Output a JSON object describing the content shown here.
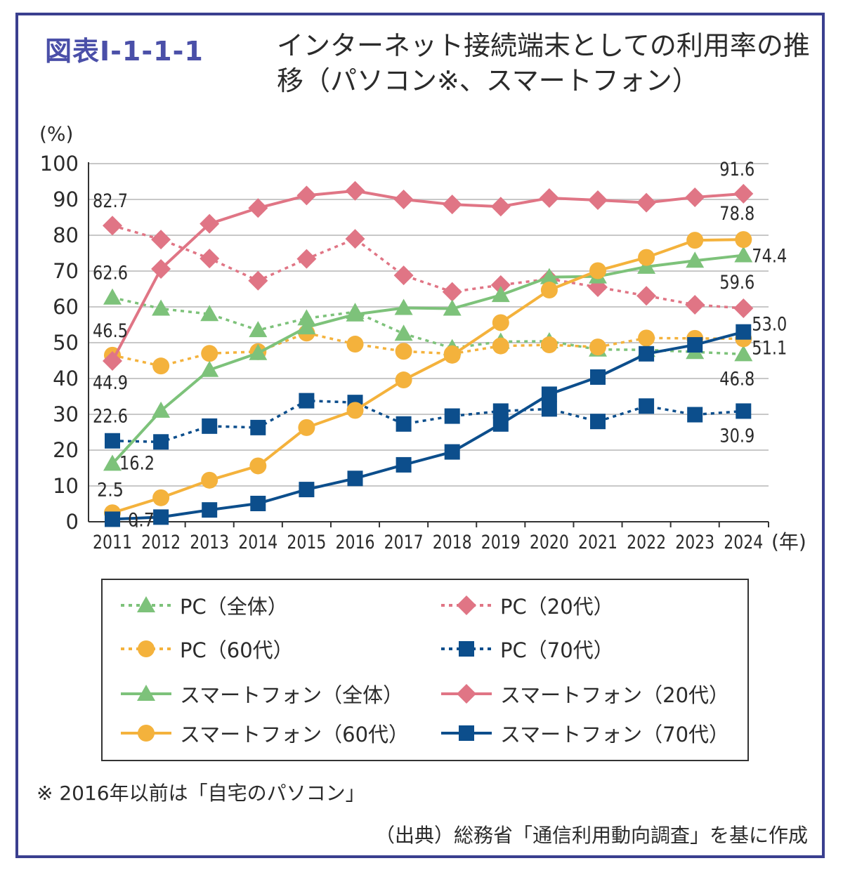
{
  "figure": {
    "label": "図表Ⅰ-1-1-1",
    "title": "インターネット接続端末としての利用率の推移（パソコン※、スマートフォン）"
  },
  "chart_data": {
    "type": "line",
    "ylabel": "(%)",
    "xlabel": "(年)",
    "ylim": [
      0,
      100
    ],
    "yticks": [
      "0",
      "10",
      "20",
      "30",
      "40",
      "50",
      "60",
      "70",
      "80",
      "90",
      "100"
    ],
    "grid": true,
    "categories": [
      "2011",
      "2012",
      "2013",
      "2014",
      "2015",
      "2016",
      "2017",
      "2018",
      "2019",
      "2020",
      "2021",
      "2022",
      "2023",
      "2024"
    ],
    "series": [
      {
        "name": "PC（全体）",
        "color": "#7dc27a",
        "dashed": true,
        "marker": "triangle",
        "values": [
          62.6,
          59.5,
          58.0,
          53.5,
          56.8,
          58.6,
          52.5,
          48.5,
          50.3,
          50.4,
          48.1,
          48.0,
          47.4,
          46.8
        ]
      },
      {
        "name": "PC（20代）",
        "color": "#e07585",
        "dashed": true,
        "marker": "diamond",
        "values": [
          82.7,
          78.8,
          73.5,
          67.3,
          73.4,
          79.0,
          68.8,
          64.2,
          66.1,
          67.8,
          65.5,
          63.1,
          60.6,
          59.6
        ]
      },
      {
        "name": "PC（60代）",
        "color": "#f4b23c",
        "dashed": true,
        "marker": "circle",
        "values": [
          46.5,
          43.5,
          47.0,
          47.5,
          52.7,
          49.6,
          47.6,
          46.9,
          49.1,
          49.4,
          48.8,
          51.3,
          51.2,
          51.1
        ]
      },
      {
        "name": "PC（70代）",
        "color": "#0c4e8c",
        "dashed": true,
        "marker": "square",
        "values": [
          22.6,
          22.3,
          26.7,
          26.3,
          33.8,
          33.3,
          27.3,
          29.5,
          30.9,
          31.5,
          28.0,
          32.3,
          29.9,
          30.9
        ]
      },
      {
        "name": "スマートフォン（全体）",
        "color": "#7dc27a",
        "dashed": false,
        "marker": "triangle",
        "values": [
          16.2,
          31.0,
          42.4,
          47.1,
          54.3,
          57.9,
          59.7,
          59.5,
          63.3,
          68.3,
          68.5,
          71.2,
          72.9,
          74.4
        ]
      },
      {
        "name": "スマートフォン（20代）",
        "color": "#e07585",
        "dashed": false,
        "marker": "diamond",
        "values": [
          44.9,
          70.6,
          83.2,
          87.6,
          91.1,
          92.4,
          90.0,
          88.6,
          88.0,
          90.4,
          89.8,
          89.1,
          90.6,
          91.6
        ]
      },
      {
        "name": "スマートフォン（60代）",
        "color": "#f4b23c",
        "dashed": false,
        "marker": "circle",
        "values": [
          2.5,
          6.7,
          11.6,
          15.6,
          26.3,
          31.1,
          39.6,
          46.5,
          55.6,
          64.7,
          70.1,
          73.8,
          78.6,
          78.8
        ]
      },
      {
        "name": "スマートフォン（70代）",
        "color": "#0c4e8c",
        "dashed": false,
        "marker": "square",
        "values": [
          0.7,
          1.3,
          3.3,
          5.1,
          9.0,
          12.1,
          15.9,
          19.5,
          27.3,
          35.6,
          40.4,
          46.9,
          49.4,
          53.0
        ]
      }
    ],
    "data_labels": [
      {
        "text": "82.7",
        "series": 1,
        "point": 0
      },
      {
        "text": "62.6",
        "series": 0,
        "point": 0
      },
      {
        "text": "46.5",
        "series": 2,
        "point": 0
      },
      {
        "text": "44.9",
        "series": 5,
        "point": 0
      },
      {
        "text": "22.6",
        "series": 3,
        "point": 0
      },
      {
        "text": "16.2",
        "series": 4,
        "point": 0
      },
      {
        "text": "2.5",
        "series": 6,
        "point": 0
      },
      {
        "text": "0.7",
        "series": 7,
        "point": 0
      },
      {
        "text": "91.6",
        "series": 5,
        "point": 13
      },
      {
        "text": "78.8",
        "series": 6,
        "point": 13
      },
      {
        "text": "74.4",
        "series": 4,
        "point": 13
      },
      {
        "text": "59.6",
        "series": 1,
        "point": 13
      },
      {
        "text": "53.0",
        "series": 7,
        "point": 13
      },
      {
        "text": "51.1",
        "series": 2,
        "point": 13
      },
      {
        "text": "46.8",
        "series": 0,
        "point": 13
      },
      {
        "text": "30.9",
        "series": 3,
        "point": 13
      }
    ]
  },
  "legend": {
    "items": [
      {
        "label": "PC（全体）",
        "series": 0
      },
      {
        "label": "PC（20代）",
        "series": 1
      },
      {
        "label": "PC（60代）",
        "series": 2
      },
      {
        "label": "PC（70代）",
        "series": 3
      },
      {
        "label": "スマートフォン（全体）",
        "series": 4
      },
      {
        "label": "スマートフォン（20代）",
        "series": 5
      },
      {
        "label": "スマートフォン（60代）",
        "series": 6
      },
      {
        "label": "スマートフォン（70代）",
        "series": 7
      }
    ]
  },
  "footnote": "※ 2016年以前は「自宅のパソコン」",
  "source": "（出典）総務省「通信利用動向調査」を基に作成"
}
